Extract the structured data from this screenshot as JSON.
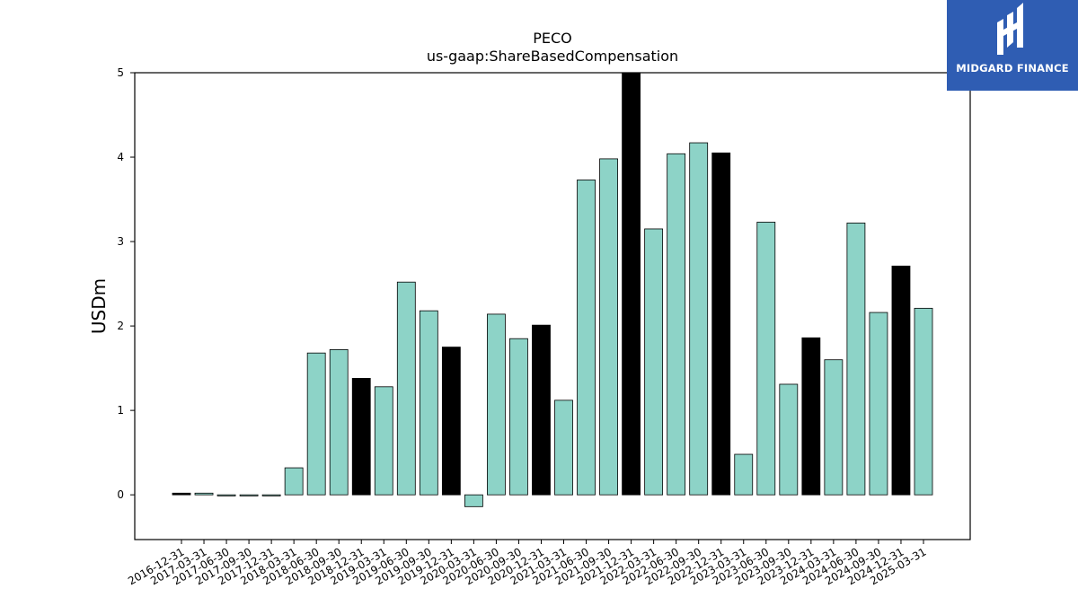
{
  "brand": {
    "name": "MIDGARD FINANCE",
    "bg_color": "#2f5db3",
    "icon": "midgard-logo-icon"
  },
  "chart_data": {
    "type": "bar",
    "title": "PECO",
    "subtitle": "us-gaap:ShareBasedCompensation",
    "xlabel": "",
    "ylabel": "USDm",
    "ylim": [
      -0.53,
      5.0
    ],
    "yticks": [
      0,
      1,
      2,
      3,
      4,
      5
    ],
    "grid": false,
    "categories": [
      "2016-12-31",
      "2017-03-31",
      "2017-06-30",
      "2017-09-30",
      "2017-12-31",
      "2018-03-31",
      "2018-06-30",
      "2018-09-30",
      "2018-12-31",
      "2019-03-31",
      "2019-06-30",
      "2019-09-30",
      "2019-12-31",
      "2020-03-31",
      "2020-06-30",
      "2020-09-30",
      "2020-12-31",
      "2021-03-31",
      "2021-06-30",
      "2021-09-30",
      "2021-12-31",
      "2022-03-31",
      "2022-06-30",
      "2022-09-30",
      "2022-12-31",
      "2023-03-31",
      "2023-06-30",
      "2023-09-30",
      "2023-12-31",
      "2024-03-31",
      "2024-06-30",
      "2024-09-30",
      "2024-12-31",
      "2025-03-31"
    ],
    "values": [
      0.02,
      0.02,
      -0.01,
      0.0,
      0.0,
      0.32,
      1.68,
      1.72,
      1.38,
      1.28,
      2.52,
      2.18,
      1.75,
      -0.14,
      2.14,
      1.85,
      2.01,
      1.12,
      3.73,
      3.98,
      5.0,
      3.15,
      4.04,
      4.17,
      4.05,
      0.48,
      3.23,
      1.31,
      1.86,
      1.6,
      3.22,
      2.16,
      2.71,
      2.21
    ],
    "highlight": [
      true,
      false,
      false,
      false,
      false,
      false,
      false,
      false,
      true,
      false,
      false,
      false,
      true,
      false,
      false,
      false,
      true,
      false,
      false,
      false,
      true,
      false,
      false,
      false,
      true,
      false,
      false,
      false,
      true,
      false,
      false,
      false,
      true,
      false
    ],
    "colors": {
      "bar": "#8dd3c7",
      "highlight": "#000000",
      "edge": "#000000"
    }
  }
}
